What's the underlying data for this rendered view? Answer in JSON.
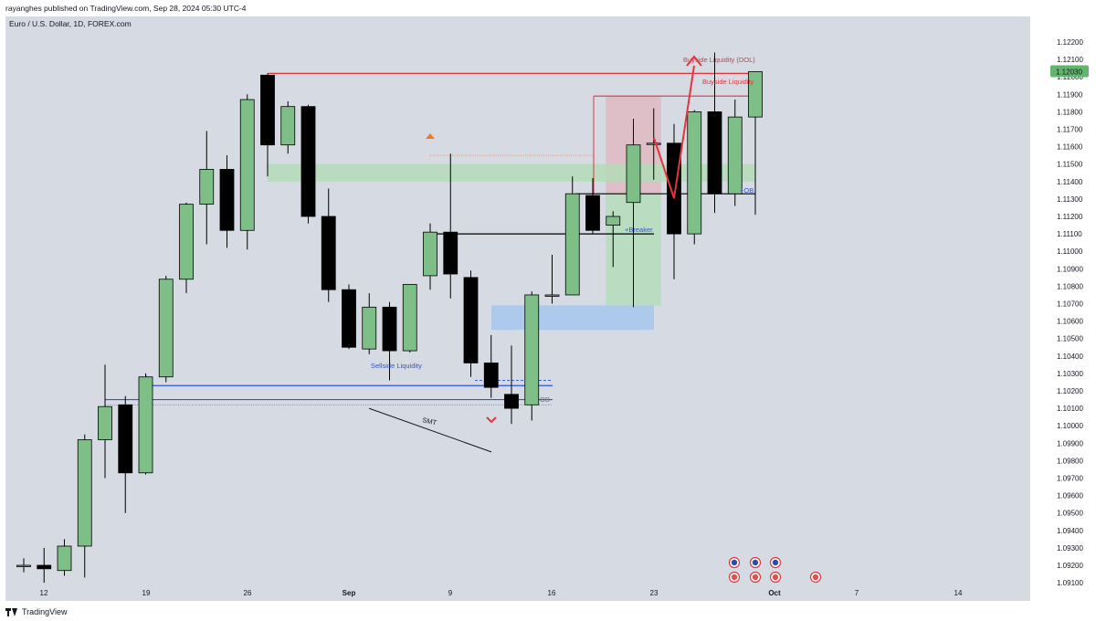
{
  "header": {
    "publisher": "rayanghes published on TradingView.com, Sep 28, 2024 05:30 UTC-4",
    "symbol": "Euro / U.S. Dollar, 1D, FOREX.com"
  },
  "footer": {
    "brand": "TradingView"
  },
  "colors": {
    "bull": "#7dbf86",
    "bear": "#000000",
    "background": "#d6dae3",
    "liquidity_red": "#e2353d",
    "liquidity_blue": "#2e56d6",
    "ob_green": "#b3dcb6",
    "fvg_blue": "#a9c6ec",
    "price_label_bg": "#62b56d"
  },
  "chart_data": {
    "type": "candlestick",
    "x_tick_labels": [
      "12",
      "19",
      "26",
      "Sep",
      "9",
      "16",
      "23",
      "Oct",
      "7",
      "14"
    ],
    "y_tick_labels": [
      "1.12200",
      "1.12100",
      "1.12000",
      "1.11900",
      "1.11800",
      "1.11700",
      "1.11600",
      "1.11500",
      "1.11400",
      "1.11300",
      "1.11200",
      "1.11100",
      "1.11000",
      "1.10900",
      "1.10800",
      "1.10700",
      "1.10600",
      "1.10500",
      "1.10400",
      "1.10300",
      "1.10200",
      "1.10100",
      "1.10000",
      "1.09900",
      "1.09800",
      "1.09700",
      "1.09600",
      "1.09500",
      "1.09400",
      "1.09300",
      "1.09200",
      "1.09100"
    ],
    "ylim": [
      1.0905,
      1.123
    ],
    "current_price": "1.12030",
    "candles": [
      {
        "o": 1.092,
        "h": 1.0924,
        "l": 1.0916,
        "c": 1.092
      },
      {
        "o": 1.092,
        "h": 1.093,
        "l": 1.091,
        "c": 1.0918
      },
      {
        "o": 1.0917,
        "h": 1.0935,
        "l": 1.0914,
        "c": 1.0931
      },
      {
        "o": 1.0931,
        "h": 1.0995,
        "l": 1.0913,
        "c": 1.0992
      },
      {
        "o": 1.0992,
        "h": 1.1035,
        "l": 1.097,
        "c": 1.1011
      },
      {
        "o": 1.1012,
        "h": 1.1017,
        "l": 1.095,
        "c": 1.0973
      },
      {
        "o": 1.0973,
        "h": 1.103,
        "l": 1.0972,
        "c": 1.1028
      },
      {
        "o": 1.1028,
        "h": 1.1086,
        "l": 1.1025,
        "c": 1.1084
      },
      {
        "o": 1.1084,
        "h": 1.1128,
        "l": 1.1076,
        "c": 1.1127
      },
      {
        "o": 1.1127,
        "h": 1.1169,
        "l": 1.1104,
        "c": 1.1147
      },
      {
        "o": 1.1147,
        "h": 1.1155,
        "l": 1.1102,
        "c": 1.1112
      },
      {
        "o": 1.1112,
        "h": 1.119,
        "l": 1.1101,
        "c": 1.1187
      },
      {
        "o": 1.1201,
        "h": 1.1202,
        "l": 1.1143,
        "c": 1.1161
      },
      {
        "o": 1.1161,
        "h": 1.1186,
        "l": 1.1156,
        "c": 1.1183
      },
      {
        "o": 1.1183,
        "h": 1.1184,
        "l": 1.1116,
        "c": 1.112
      },
      {
        "o": 1.112,
        "h": 1.1136,
        "l": 1.1071,
        "c": 1.1078
      },
      {
        "o": 1.1078,
        "h": 1.1081,
        "l": 1.1044,
        "c": 1.1045
      },
      {
        "o": 1.1044,
        "h": 1.1076,
        "l": 1.1041,
        "c": 1.1068
      },
      {
        "o": 1.1068,
        "h": 1.1071,
        "l": 1.1026,
        "c": 1.1043
      },
      {
        "o": 1.1043,
        "h": 1.108,
        "l": 1.1042,
        "c": 1.1081
      },
      {
        "o": 1.1086,
        "h": 1.1116,
        "l": 1.1078,
        "c": 1.1111
      },
      {
        "o": 1.1111,
        "h": 1.1156,
        "l": 1.1073,
        "c": 1.1087
      },
      {
        "o": 1.1085,
        "h": 1.1089,
        "l": 1.1028,
        "c": 1.1036
      },
      {
        "o": 1.1036,
        "h": 1.1052,
        "l": 1.1016,
        "c": 1.1022
      },
      {
        "o": 1.1018,
        "h": 1.1046,
        "l": 1.1001,
        "c": 1.101
      },
      {
        "o": 1.1012,
        "h": 1.1077,
        "l": 1.1003,
        "c": 1.1075
      },
      {
        "o": 1.1075,
        "h": 1.1098,
        "l": 1.107,
        "c": 1.1075
      },
      {
        "o": 1.1075,
        "h": 1.1143,
        "l": 1.1075,
        "c": 1.1133
      },
      {
        "o": 1.1132,
        "h": 1.1142,
        "l": 1.111,
        "c": 1.1112
      },
      {
        "o": 1.1115,
        "h": 1.1123,
        "l": 1.1091,
        "c": 1.112
      },
      {
        "o": 1.1128,
        "h": 1.1176,
        "l": 1.1068,
        "c": 1.1161
      },
      {
        "o": 1.1162,
        "h": 1.1182,
        "l": 1.1141,
        "c": 1.1162
      },
      {
        "o": 1.1162,
        "h": 1.1173,
        "l": 1.1084,
        "c": 1.111
      },
      {
        "o": 1.111,
        "h": 1.1181,
        "l": 1.1104,
        "c": 1.118
      },
      {
        "o": 1.118,
        "h": 1.1214,
        "l": 1.1122,
        "c": 1.1133
      },
      {
        "o": 1.1133,
        "h": 1.1187,
        "l": 1.1126,
        "c": 1.1177
      },
      {
        "o": 1.1177,
        "h": 1.1203,
        "l": 1.1121,
        "c": 1.1203
      }
    ],
    "annotations": {
      "buyside_liquidity_dol": "Buyside Liquidity (DOL)",
      "buyside_liquidity": "Buyside Liquidity",
      "ob_plus": "+OB",
      "breaker_plus": "+Breaker",
      "sellside_liquidity": "Sellside Liquidity",
      "ob": "OB",
      "smt": "SMT"
    },
    "levels": {
      "buyside_dol_price": 1.1202,
      "buyside_price": 1.1189,
      "ob_plus_price": 1.1133,
      "breaker_price": 1.111,
      "sellside_blue_1": 1.1023,
      "sellside_blue_2": 1.1015,
      "sellside_dashed": 1.1026,
      "ob_dotted": 1.1012,
      "orange_dotted": 1.1155,
      "green_zone": [
        1.114,
        1.115
      ],
      "blue_zone": [
        1.1055,
        1.1069
      ],
      "red_zone": [
        1.1133,
        1.1189
      ],
      "green_tall_zone": [
        1.1069,
        1.1133
      ]
    }
  }
}
